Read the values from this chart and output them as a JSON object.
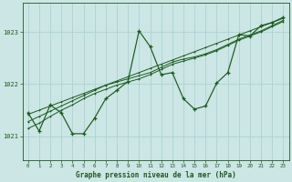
{
  "bg_color": "#cce5e5",
  "grid_color": "#aad4d4",
  "line_color": "#1a5c1a",
  "marker_color": "#1a5c1a",
  "xlabel": "Graphe pression niveau de la mer (hPa)",
  "xlabel_color": "#1a5c1a",
  "ylabel_ticks": [
    1021,
    1022,
    1023
  ],
  "xlim": [
    -0.5,
    23.5
  ],
  "ylim": [
    1020.55,
    1023.55
  ],
  "series1": [
    1021.45,
    1021.1,
    1021.6,
    1021.45,
    1021.05,
    1021.05,
    1021.35,
    1021.72,
    1021.88,
    1022.05,
    1023.02,
    1022.72,
    1022.18,
    1022.22,
    1021.72,
    1021.52,
    1021.58,
    1022.02,
    1022.22,
    1022.95,
    1022.92,
    1023.12,
    1023.18,
    1023.28
  ],
  "series2": [
    1021.42,
    1021.5,
    1021.58,
    1021.66,
    1021.74,
    1021.82,
    1021.9,
    1021.98,
    1022.06,
    1022.14,
    1022.22,
    1022.3,
    1022.38,
    1022.46,
    1022.54,
    1022.62,
    1022.7,
    1022.78,
    1022.86,
    1022.94,
    1023.02,
    1023.1,
    1023.18,
    1023.26
  ],
  "series3": [
    1021.28,
    1021.38,
    1021.48,
    1021.58,
    1021.68,
    1021.78,
    1021.88,
    1021.98,
    1022.04,
    1022.1,
    1022.16,
    1022.22,
    1022.32,
    1022.42,
    1022.48,
    1022.52,
    1022.58,
    1022.66,
    1022.76,
    1022.86,
    1022.94,
    1023.02,
    1023.12,
    1023.22
  ],
  "series4": [
    1021.15,
    1021.25,
    1021.38,
    1021.5,
    1021.6,
    1021.72,
    1021.82,
    1021.9,
    1021.98,
    1022.04,
    1022.1,
    1022.18,
    1022.28,
    1022.38,
    1022.44,
    1022.5,
    1022.56,
    1022.64,
    1022.74,
    1022.84,
    1022.92,
    1023.0,
    1023.1,
    1023.2
  ]
}
